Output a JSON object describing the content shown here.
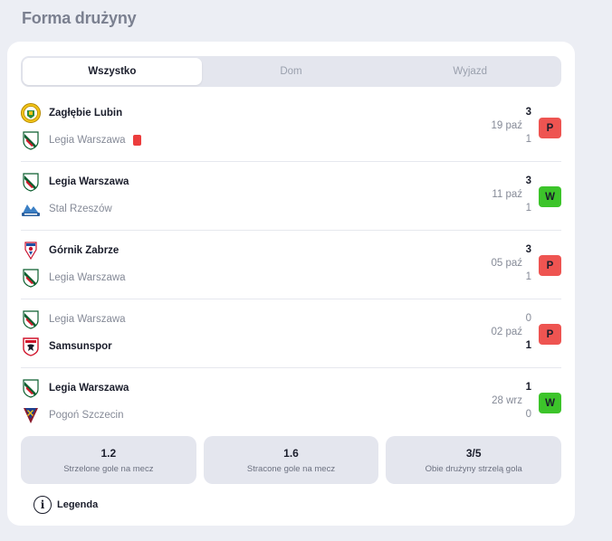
{
  "title": "Forma drużyny",
  "tabs": [
    {
      "label": "Wszystko",
      "active": true
    },
    {
      "label": "Dom",
      "active": false
    },
    {
      "label": "Wyjazd",
      "active": false
    }
  ],
  "matches": [
    {
      "home": {
        "name": "Zagłębie Lubin",
        "score": "3",
        "crest": "zaglebie-crest",
        "winner": true
      },
      "away": {
        "name": "Legia Warszawa",
        "score": "1",
        "crest": "legia-crest",
        "winner": false,
        "red_card": true
      },
      "date": "19 paź",
      "result": "P"
    },
    {
      "home": {
        "name": "Legia Warszawa",
        "score": "3",
        "crest": "legia-crest",
        "winner": true
      },
      "away": {
        "name": "Stal Rzeszów",
        "score": "1",
        "crest": "stal-crest",
        "winner": false
      },
      "date": "11 paź",
      "result": "W"
    },
    {
      "home": {
        "name": "Górnik Zabrze",
        "score": "3",
        "crest": "gornik-crest",
        "winner": true
      },
      "away": {
        "name": "Legia Warszawa",
        "score": "1",
        "crest": "legia-crest",
        "winner": false
      },
      "date": "05 paź",
      "result": "P"
    },
    {
      "home": {
        "name": "Legia Warszawa",
        "score": "0",
        "crest": "legia-crest",
        "winner": false
      },
      "away": {
        "name": "Samsunspor",
        "score": "1",
        "crest": "samsunspor-crest",
        "winner": true
      },
      "date": "02 paź",
      "result": "P"
    },
    {
      "home": {
        "name": "Legia Warszawa",
        "score": "1",
        "crest": "legia-crest",
        "winner": true
      },
      "away": {
        "name": "Pogoń Szczecin",
        "score": "0",
        "crest": "pogon-crest",
        "winner": false
      },
      "date": "28 wrz",
      "result": "W"
    }
  ],
  "stats": [
    {
      "value": "1.2",
      "label": "Strzelone gole na mecz"
    },
    {
      "value": "1.6",
      "label": "Stracone gole na mecz"
    },
    {
      "value": "3/5",
      "label": "Obie drużyny strzelą gola"
    }
  ],
  "legend": {
    "icon": "info-icon",
    "label": "Legenda"
  },
  "colors": {
    "win": "#3cc42a",
    "loss": "#ee5451",
    "red_card": "#ec3d3d"
  }
}
